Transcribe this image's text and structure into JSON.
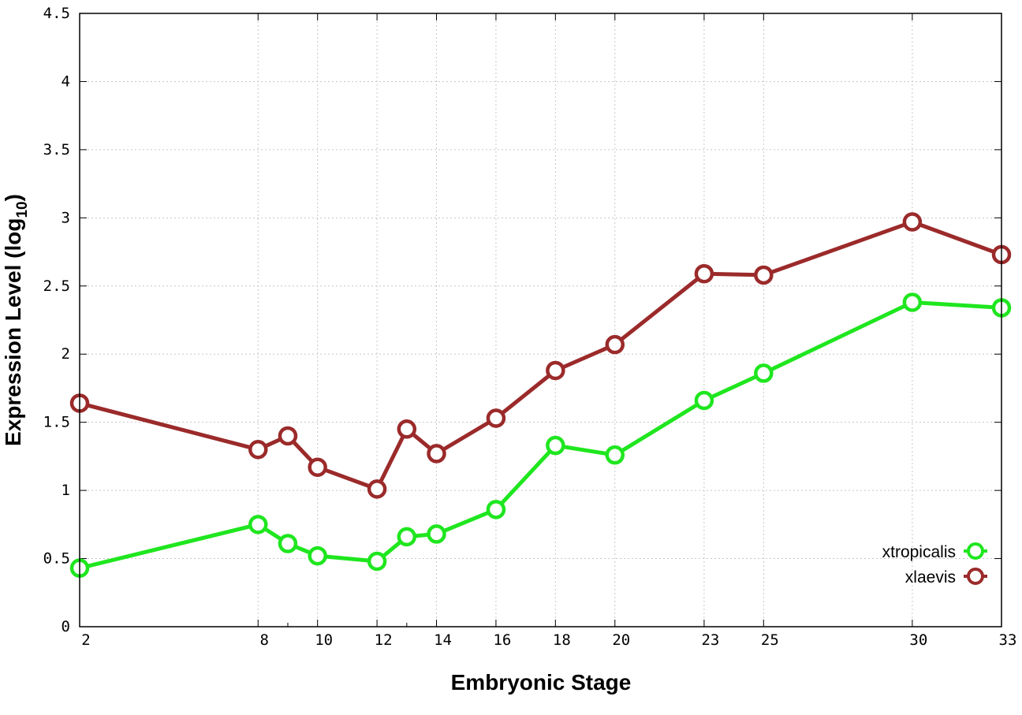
{
  "chart_data": {
    "type": "line",
    "xlabel": "Embryonic Stage",
    "ylabel_main": "Expression Level (log",
    "ylabel_sub": "10",
    "ylabel_close": ")",
    "xlim": [
      2,
      33
    ],
    "ylim": [
      0,
      4.5
    ],
    "x_ticks": [
      2,
      8,
      10,
      12,
      14,
      16,
      18,
      20,
      23,
      25,
      30,
      33
    ],
    "x_ticks_minor": [
      9,
      13
    ],
    "y_ticks": [
      0,
      0.5,
      1,
      1.5,
      2,
      2.5,
      3,
      3.5,
      4,
      4.5
    ],
    "y_tick_labels": [
      "0",
      "0.5",
      "1",
      "1.5",
      "2",
      "2.5",
      "3",
      "3.5",
      "4",
      "4.5"
    ],
    "grid": true,
    "legend_position": "bottom-right",
    "series": [
      {
        "name": "xtropicalis",
        "color": "#1fe61f",
        "x": [
          2,
          8,
          9,
          10,
          12,
          13,
          14,
          16,
          18,
          20,
          23,
          25,
          30,
          33
        ],
        "y": [
          0.43,
          0.75,
          0.61,
          0.52,
          0.48,
          0.66,
          0.68,
          0.86,
          1.33,
          1.26,
          1.66,
          1.86,
          2.38,
          2.34
        ]
      },
      {
        "name": "xlaevis",
        "color": "#9b2a2a",
        "x": [
          2,
          8,
          9,
          10,
          12,
          13,
          14,
          16,
          18,
          20,
          23,
          25,
          30,
          33
        ],
        "y": [
          1.64,
          1.3,
          1.4,
          1.17,
          1.01,
          1.45,
          1.27,
          1.53,
          1.88,
          2.07,
          2.59,
          2.58,
          2.97,
          2.73
        ]
      }
    ]
  }
}
